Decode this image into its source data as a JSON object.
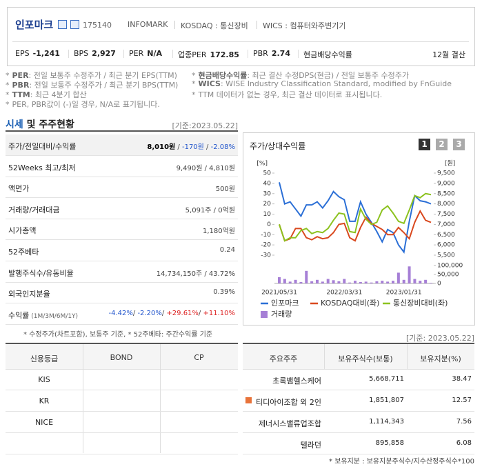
{
  "header": {
    "name": "인포마크",
    "code": "175140",
    "tags": [
      "INFOMARK",
      "KOSDAQ : 통신장비",
      "WICS : 컴퓨터와주변기기"
    ],
    "metrics": [
      {
        "label": "EPS",
        "value": "-1,241"
      },
      {
        "label": "BPS",
        "value": "2,927"
      },
      {
        "label": "PER",
        "value": "N/A"
      },
      {
        "label": "업종PER",
        "value": "172.85"
      },
      {
        "label": "PBR",
        "value": "2.74"
      },
      {
        "label": "현금배당수익률"
      }
    ],
    "settlement": "12월 결산"
  },
  "notes": {
    "left": [
      {
        "mark": "*",
        "key": "PER",
        "text": ": 전일 보통주 수정주가 / 최근 분기 EPS(TTM)"
      },
      {
        "mark": "*",
        "key": "PBR",
        "text": ": 전일 보통주 수정주가 / 최근 분기 BPS(TTM)"
      },
      {
        "mark": "*",
        "key": "TTM",
        "text": ": 최근 4분기 합산"
      },
      {
        "mark": "*",
        "text": "PER, PBR값이 (-)일 경우, N/A로 표기됩니다."
      }
    ],
    "right": [
      {
        "mark": "*",
        "key": "현금배당수익률",
        "text": ": 최근 결산 수정DPS(현금) / 전일 보통주 수정주가"
      },
      {
        "mark": "*",
        "key": "WICS",
        "text": ": WISE Industry Classification Standard, modified by FnGuide"
      },
      {
        "mark": "*",
        "text": "TTM 데이터가 없는 경우, 최근 결산 데이터로 표시됩니다."
      }
    ]
  },
  "market": {
    "title_main": "시세",
    "title_rest": " 및 주주현황",
    "date": "[기준:2023.05.22]",
    "rows": [
      {
        "label": "주가/전일대비/수익률",
        "values": [
          {
            "text": "8,010원",
            "color": "#000000",
            "bold": true
          },
          {
            "text": " / "
          },
          {
            "text": "-170원",
            "color": "#2255cc"
          },
          {
            "text": " / "
          },
          {
            "text": "-2.08%",
            "color": "#2255cc"
          }
        ]
      },
      {
        "label": "52Weeks 최고/최저",
        "values": [
          {
            "text": "9,490원 / 4,810원"
          }
        ]
      },
      {
        "label": "액면가",
        "values": [
          {
            "text": "500원"
          }
        ]
      },
      {
        "label": "거래량/거래대금",
        "values": [
          {
            "text": "5,091주 / 0억원"
          }
        ]
      },
      {
        "label": "시가총액",
        "values": [
          {
            "text": "1,180억원"
          }
        ]
      },
      {
        "label": "52주베타",
        "values": [
          {
            "text": "0.24"
          }
        ]
      },
      {
        "label": "발행주식수/유동비율",
        "values": [
          {
            "text": "14,734,150주 / 43.72%"
          }
        ]
      },
      {
        "label": "외국인지분율",
        "values": [
          {
            "text": "0.39%"
          }
        ]
      },
      {
        "label": "수익률",
        "label_note": " (1M/3M/6M/1Y)",
        "values": [
          {
            "text": "-4.42%",
            "color": "#2255cc"
          },
          {
            "text": "/ "
          },
          {
            "text": "-2.20%",
            "color": "#2255cc"
          },
          {
            "text": "/ "
          },
          {
            "text": "+29.61%",
            "color": "#dd2222"
          },
          {
            "text": "/ "
          },
          {
            "text": "+11.10%",
            "color": "#dd2222"
          }
        ]
      }
    ],
    "footnote": "* 수정주가(차트포함), 보통주 기준, * 52주베타: 주간수익률 기준"
  },
  "chart_data": {
    "type": "line",
    "title": "주가/상대수익률",
    "buttons": [
      "1",
      "2",
      "3"
    ],
    "ylabel": "[%]",
    "y2label": "[원]",
    "categories": [
      "2021/05/31",
      null,
      null,
      null,
      null,
      null,
      null,
      null,
      null,
      null,
      null,
      null,
      "2022/03/31",
      null,
      null,
      null,
      null,
      null,
      null,
      null,
      null,
      null,
      null,
      "2023/01/31",
      null,
      null,
      null,
      null,
      null
    ],
    "ylim": [
      -30,
      50
    ],
    "yticks": [
      50,
      40,
      30,
      20,
      10,
      0,
      -10,
      -20,
      -30
    ],
    "y2lim": [
      5500,
      9500
    ],
    "y2ticks": [
      {
        "value": 9500,
        "label": "9,500"
      },
      {
        "value": 9000,
        "label": "9,000"
      },
      {
        "value": 8500,
        "label": "8,500"
      },
      {
        "value": 8000,
        "label": "8,000"
      },
      {
        "value": 7500,
        "label": "7,500"
      },
      {
        "value": 7000,
        "label": "7,000"
      },
      {
        "value": 6500,
        "label": "6,500"
      },
      {
        "value": 6000,
        "label": "6,000"
      },
      {
        "value": 5500,
        "label": "5,500"
      }
    ],
    "y3lim": [
      0,
      100000
    ],
    "y3ticks": [
      {
        "value": 100000,
        "label": "100,000"
      },
      {
        "value": 50000,
        "label": "50,000"
      },
      0
    ],
    "series": [
      {
        "name": "인포마크",
        "color": "#2b6fd6",
        "axis": "y2",
        "values": [
          9050,
          8000,
          8100,
          7750,
          7400,
          7950,
          7950,
          8100,
          7800,
          8150,
          8600,
          8350,
          8200,
          7150,
          7150,
          8100,
          7500,
          7100,
          6650,
          6150,
          6750,
          6600,
          6000,
          5650,
          7150,
          8400,
          8150,
          8100,
          8000
        ]
      },
      {
        "name": "KOSDAQ대비(좌)",
        "color": "#d9481e",
        "values": [
          0,
          -16,
          -14,
          -4,
          -4,
          -13,
          -15,
          -12,
          -14,
          -13,
          -8,
          0,
          1,
          -13,
          -16,
          -3,
          7,
          1,
          -2,
          -5,
          -10,
          -10,
          -3,
          -8,
          -14,
          2,
          13,
          4,
          2
        ]
      },
      {
        "name": "통신장비대비(좌)",
        "color": "#8cc21f",
        "values": [
          0,
          -16,
          -13,
          -13,
          -6,
          -4,
          -9,
          -7,
          -8,
          -4,
          4,
          11,
          10,
          -7,
          -8,
          15,
          5,
          0,
          2,
          14,
          18,
          11,
          3,
          1,
          14,
          28,
          26,
          30,
          29
        ]
      },
      {
        "name": "거래량",
        "color": "#a67fd6",
        "axis": "y3",
        "type": "bar",
        "values": [
          35000,
          25000,
          10000,
          20000,
          8000,
          70000,
          12000,
          20000,
          10000,
          25000,
          18000,
          12000,
          25000,
          5000,
          15000,
          8000,
          10000,
          5000,
          12000,
          15000,
          10000,
          15000,
          60000,
          20000,
          95000,
          25000,
          15000,
          20000,
          3000
        ]
      }
    ]
  },
  "credit": {
    "headers": [
      "신용등급",
      "BOND",
      "CP"
    ],
    "rows": [
      [
        "KIS"
      ],
      [
        "KR"
      ],
      [
        "NICE"
      ],
      []
    ]
  },
  "holders": {
    "date": "[기준: 2023.05.22]",
    "headers": [
      "주요주주",
      "보유주식수(보통)",
      "보유지분(%)"
    ],
    "rows": [
      [
        "초록뱀헬스케어",
        "5,668,711",
        "38.47"
      ],
      [
        "티디아이조합 외 2인",
        "1,851,807",
        "12.57"
      ],
      [
        "제너시스밸류업조합",
        "1,114,343",
        "7.56"
      ],
      [
        "텔라던",
        "895,858",
        "6.08"
      ]
    ],
    "footnote": "* 보유지분 : 보유지분주식수/지수산정주식수*100"
  }
}
